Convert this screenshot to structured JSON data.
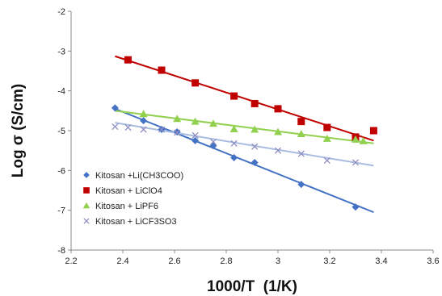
{
  "chart_data": {
    "type": "scatter",
    "xlabel": "1000/T  (1/K)",
    "ylabel": "Log σ (S/cm)",
    "xlim": [
      2.2,
      3.6
    ],
    "ylim": [
      -8,
      -2
    ],
    "xticks": [
      2.2,
      2.4,
      2.6,
      2.8,
      3.0,
      3.2,
      3.4,
      3.6
    ],
    "xtick_labels": [
      "2.2",
      "2.4",
      "2.6",
      "2.8",
      "3",
      "3.2",
      "3.4",
      "3.6"
    ],
    "yticks": [
      -8,
      -7,
      -6,
      -5,
      -4,
      -3,
      -2
    ],
    "ytick_labels": [
      "-8",
      "-7",
      "-6",
      "-5",
      "-4",
      "-3",
      "-2"
    ],
    "grid": false,
    "legend_position": "bottom-left",
    "series": [
      {
        "name": "Kitosan +Li(CH3COO)",
        "color": "#4472C4",
        "marker": "diamond",
        "trendline": {
          "x": [
            2.37,
            3.37
          ],
          "y": [
            -4.45,
            -7.05
          ]
        },
        "points": [
          {
            "x": 2.37,
            "y": -4.43
          },
          {
            "x": 2.48,
            "y": -4.75
          },
          {
            "x": 2.55,
            "y": -4.97
          },
          {
            "x": 2.61,
            "y": -5.03
          },
          {
            "x": 2.68,
            "y": -5.25
          },
          {
            "x": 2.75,
            "y": -5.38
          },
          {
            "x": 2.83,
            "y": -5.68
          },
          {
            "x": 2.91,
            "y": -5.8
          },
          {
            "x": 3.09,
            "y": -6.35
          },
          {
            "x": 3.3,
            "y": -6.92
          }
        ]
      },
      {
        "name": "Kitosan + LiClO4",
        "color": "#C00000",
        "marker": "square",
        "trendline": {
          "x": [
            2.37,
            3.37
          ],
          "y": [
            -3.13,
            -5.25
          ]
        },
        "points": [
          {
            "x": 2.42,
            "y": -3.22
          },
          {
            "x": 2.55,
            "y": -3.48
          },
          {
            "x": 2.68,
            "y": -3.8
          },
          {
            "x": 2.83,
            "y": -4.13
          },
          {
            "x": 2.91,
            "y": -4.32
          },
          {
            "x": 3.0,
            "y": -4.45
          },
          {
            "x": 3.09,
            "y": -4.77
          },
          {
            "x": 3.19,
            "y": -4.92
          },
          {
            "x": 3.3,
            "y": -5.16
          },
          {
            "x": 3.37,
            "y": -5.0
          }
        ]
      },
      {
        "name": "Kitosan + LiPF6",
        "color": "#92D050",
        "marker": "triangle",
        "trendline": {
          "x": [
            2.37,
            3.37
          ],
          "y": [
            -4.5,
            -5.32
          ]
        },
        "points": [
          {
            "x": 2.48,
            "y": -4.58
          },
          {
            "x": 2.61,
            "y": -4.7
          },
          {
            "x": 2.68,
            "y": -4.77
          },
          {
            "x": 2.75,
            "y": -4.82
          },
          {
            "x": 2.83,
            "y": -4.96
          },
          {
            "x": 2.91,
            "y": -4.97
          },
          {
            "x": 3.0,
            "y": -5.03
          },
          {
            "x": 3.09,
            "y": -5.08
          },
          {
            "x": 3.19,
            "y": -5.2
          },
          {
            "x": 3.3,
            "y": -5.22
          },
          {
            "x": 3.33,
            "y": -5.26
          }
        ]
      },
      {
        "name": "Kitosan + LiCF3SO3",
        "color": "#8E8EC3",
        "line_color": "#A9BCE0",
        "marker": "x",
        "trendline": {
          "x": [
            2.37,
            3.37
          ],
          "y": [
            -4.8,
            -5.88
          ]
        },
        "points": [
          {
            "x": 2.37,
            "y": -4.9
          },
          {
            "x": 2.42,
            "y": -4.92
          },
          {
            "x": 2.48,
            "y": -4.97
          },
          {
            "x": 2.55,
            "y": -4.97
          },
          {
            "x": 2.61,
            "y": -5.05
          },
          {
            "x": 2.68,
            "y": -5.12
          },
          {
            "x": 2.75,
            "y": -5.28
          },
          {
            "x": 2.83,
            "y": -5.32
          },
          {
            "x": 2.91,
            "y": -5.4
          },
          {
            "x": 3.0,
            "y": -5.5
          },
          {
            "x": 3.09,
            "y": -5.58
          },
          {
            "x": 3.19,
            "y": -5.75
          },
          {
            "x": 3.3,
            "y": -5.8
          }
        ]
      }
    ]
  }
}
